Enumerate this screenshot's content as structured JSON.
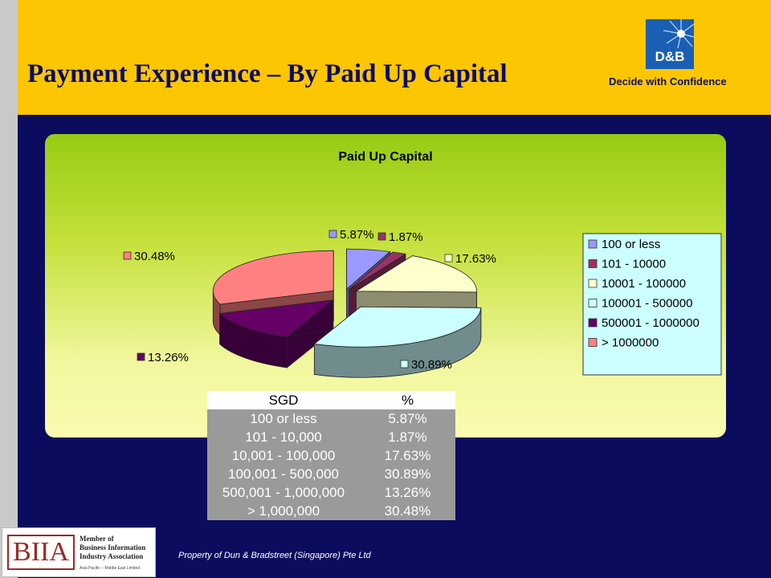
{
  "slide": {
    "title": "Payment Experience – By Paid Up Capital",
    "logo_text": "D&B",
    "tagline": "Decide with Confidence",
    "footer": "Property of Dun & Bradstreet (Singapore) Pte Ltd",
    "biia": {
      "mark": "BIIA",
      "line1": "Member of",
      "line2": "Business Information",
      "line3": "Industry Association",
      "line4": "Asia Pacific – Middle East Limited"
    }
  },
  "chart_data": {
    "type": "pie",
    "title": "Paid Up Capital",
    "categories": [
      "100 or less",
      "101 - 10000",
      "10001 - 100000",
      "100001 - 500000",
      "500001 - 1000000",
      "> 1000000"
    ],
    "values": [
      5.87,
      1.87,
      17.63,
      30.89,
      13.26,
      30.48
    ],
    "data_labels": [
      "5.87%",
      "1.87%",
      "17.63%",
      "30.89%",
      "13.26%",
      "30.48%"
    ],
    "colors": [
      "#9999ff",
      "#993366",
      "#ffffcc",
      "#ccffff",
      "#660066",
      "#ff8080"
    ],
    "legend_position": "right",
    "three_d": true
  },
  "table": {
    "headers": [
      "SGD",
      "%"
    ],
    "rows": [
      [
        "100 or less",
        "5.87%"
      ],
      [
        "101 - 10,000",
        "1.87%"
      ],
      [
        "10,001 - 100,000",
        "17.63%"
      ],
      [
        "100,001 - 500,000",
        "30.89%"
      ],
      [
        "500,001 - 1,000,000",
        "13.26%"
      ],
      [
        "> 1,000,000",
        "30.48%"
      ]
    ]
  }
}
